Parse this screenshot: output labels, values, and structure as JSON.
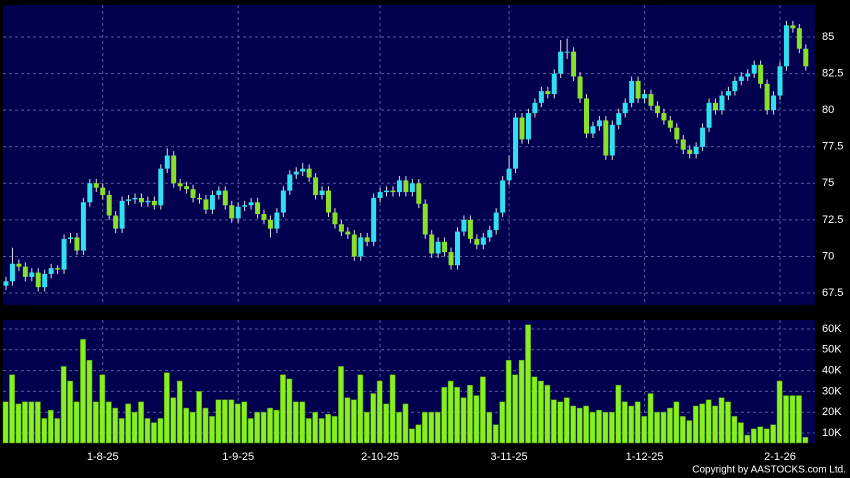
{
  "chart_data": {
    "type": "candlestick",
    "categories": [
      null,
      null,
      null,
      null,
      null,
      null,
      null,
      null,
      null,
      null,
      null,
      null,
      null,
      null,
      null,
      "1-8-25",
      null,
      null,
      null,
      null,
      null,
      null,
      null,
      null,
      null,
      null,
      null,
      null,
      null,
      null,
      null,
      null,
      null,
      null,
      null,
      null,
      "1-9-25",
      null,
      null,
      null,
      null,
      null,
      null,
      null,
      null,
      null,
      null,
      null,
      null,
      null,
      null,
      null,
      null,
      null,
      null,
      null,
      null,
      null,
      "2-10-25",
      null,
      null,
      null,
      null,
      null,
      null,
      null,
      null,
      null,
      null,
      null,
      null,
      null,
      null,
      null,
      null,
      null,
      null,
      null,
      "3-11-25",
      null,
      null,
      null,
      null,
      null,
      null,
      null,
      null,
      null,
      null,
      null,
      null,
      null,
      null,
      null,
      null,
      null,
      null,
      null,
      null,
      "1-12-25",
      null,
      null,
      null,
      null,
      null,
      null,
      null,
      null,
      null,
      null,
      null,
      null,
      null,
      null,
      null,
      null,
      null,
      null,
      null,
      null,
      "2-1-26",
      null,
      null,
      null,
      null
    ],
    "open": [
      68.0,
      68.3,
      69.5,
      69.3,
      68.6,
      68.9,
      67.9,
      68.8,
      69.2,
      69.1,
      71.2,
      71.3,
      70.4,
      73.7,
      75.0,
      74.7,
      74.2,
      72.8,
      71.9,
      73.8,
      73.9,
      74.0,
      73.7,
      73.8,
      73.5,
      76.0,
      76.9,
      75.0,
      74.8,
      74.6,
      74.0,
      73.9,
      73.2,
      74.2,
      74.5,
      73.5,
      72.6,
      73.4,
      73.5,
      73.7,
      72.9,
      72.5,
      71.9,
      73.0,
      74.5,
      75.6,
      75.8,
      76.0,
      75.4,
      74.2,
      74.5,
      73.0,
      72.2,
      71.7,
      71.5,
      70.0,
      71.3,
      71.0,
      74.0,
      74.4,
      74.5,
      74.4,
      75.2,
      74.4,
      75.0,
      73.6,
      71.5,
      70.2,
      71.0,
      70.3,
      69.4,
      71.7,
      72.5,
      71.2,
      70.8,
      71.3,
      71.8,
      73.0,
      75.2,
      76.0,
      79.5,
      78.0,
      79.8,
      80.5,
      81.3,
      81.1,
      82.5,
      84.0,
      84.0,
      82.3,
      80.8,
      78.4,
      78.9,
      79.3,
      76.9,
      79.0,
      79.8,
      80.5,
      82.0,
      80.8,
      81.1,
      80.3,
      79.8,
      79.3,
      78.8,
      78.0,
      77.3,
      77.0,
      77.5,
      78.8,
      80.5,
      80.0,
      81.0,
      81.3,
      82.0,
      82.3,
      82.5,
      83.1,
      81.8,
      80.0,
      81.0,
      83.0,
      85.8,
      85.6,
      84.2
    ],
    "high": [
      68.6,
      70.6,
      69.8,
      69.6,
      69.2,
      69.2,
      69.1,
      69.5,
      69.4,
      71.5,
      71.6,
      71.6,
      74.0,
      75.3,
      75.3,
      75.0,
      74.5,
      73.1,
      74.1,
      74.2,
      74.3,
      74.3,
      74.1,
      74.1,
      76.3,
      77.4,
      77.2,
      75.3,
      75.1,
      74.9,
      74.3,
      74.2,
      74.5,
      74.8,
      74.8,
      73.8,
      73.7,
      73.8,
      74.0,
      74.0,
      73.2,
      72.8,
      73.3,
      74.8,
      75.9,
      76.1,
      76.4,
      76.3,
      75.7,
      74.8,
      74.8,
      73.3,
      72.5,
      72.0,
      71.8,
      71.6,
      71.6,
      74.3,
      74.7,
      74.8,
      74.8,
      75.5,
      75.5,
      75.3,
      75.3,
      73.9,
      71.8,
      71.3,
      71.3,
      70.6,
      72.0,
      72.8,
      72.8,
      71.5,
      71.6,
      72.1,
      73.3,
      75.5,
      76.9,
      79.8,
      79.8,
      80.1,
      80.8,
      81.6,
      81.6,
      82.8,
      84.8,
      84.9,
      84.3,
      82.6,
      81.1,
      79.2,
      79.6,
      79.6,
      79.3,
      80.1,
      80.8,
      82.3,
      82.3,
      81.4,
      81.4,
      80.6,
      80.1,
      79.6,
      79.1,
      78.3,
      77.6,
      77.8,
      79.1,
      80.8,
      80.8,
      81.3,
      81.6,
      82.3,
      82.6,
      82.8,
      83.4,
      83.4,
      82.1,
      81.3,
      83.3,
      86.1,
      86.1,
      85.9,
      84.5
    ],
    "low": [
      67.7,
      68.0,
      69.0,
      68.3,
      68.3,
      67.6,
      67.6,
      68.5,
      68.8,
      68.8,
      70.9,
      70.1,
      70.1,
      73.4,
      74.4,
      73.9,
      72.5,
      71.6,
      71.6,
      73.5,
      73.6,
      73.4,
      73.4,
      73.2,
      73.2,
      75.7,
      74.7,
      74.5,
      74.3,
      73.7,
      73.6,
      72.9,
      72.9,
      73.9,
      73.2,
      72.3,
      72.3,
      73.1,
      73.2,
      72.6,
      72.2,
      71.3,
      71.6,
      72.7,
      74.2,
      75.3,
      75.5,
      75.1,
      73.9,
      73.9,
      72.7,
      71.9,
      71.4,
      71.2,
      69.7,
      69.7,
      70.7,
      70.7,
      73.7,
      74.1,
      74.1,
      74.1,
      74.1,
      74.1,
      73.3,
      71.2,
      69.9,
      69.9,
      70.0,
      69.1,
      69.1,
      71.4,
      70.9,
      70.5,
      70.5,
      71.0,
      71.5,
      72.7,
      74.9,
      75.7,
      77.7,
      77.7,
      79.5,
      80.2,
      80.8,
      80.8,
      82.2,
      83.5,
      82.0,
      80.5,
      78.1,
      78.1,
      78.6,
      76.6,
      76.6,
      78.7,
      79.5,
      80.2,
      80.5,
      80.5,
      80.0,
      79.5,
      79.0,
      78.5,
      77.7,
      77.0,
      76.7,
      76.7,
      77.2,
      78.5,
      79.7,
      79.7,
      80.7,
      81.0,
      81.7,
      82.0,
      82.2,
      81.5,
      79.7,
      79.7,
      80.7,
      82.7,
      85.3,
      83.9,
      82.7
    ],
    "close": [
      68.3,
      69.5,
      69.3,
      68.6,
      68.9,
      67.9,
      68.8,
      69.2,
      69.1,
      71.2,
      71.3,
      70.4,
      73.7,
      75.0,
      74.7,
      74.2,
      72.8,
      71.9,
      73.8,
      73.9,
      74.0,
      73.7,
      73.8,
      73.5,
      76.0,
      76.9,
      75.0,
      74.8,
      74.6,
      74.0,
      73.9,
      73.2,
      74.2,
      74.5,
      73.5,
      72.6,
      73.4,
      73.5,
      73.7,
      72.9,
      72.5,
      71.9,
      73.0,
      74.5,
      75.6,
      75.8,
      76.0,
      75.4,
      74.2,
      74.5,
      73.0,
      72.2,
      71.7,
      71.5,
      70.0,
      71.3,
      71.0,
      74.0,
      74.4,
      74.5,
      74.4,
      75.2,
      74.4,
      75.0,
      73.6,
      71.5,
      70.2,
      71.0,
      70.3,
      69.4,
      71.7,
      72.5,
      71.2,
      70.8,
      71.3,
      71.8,
      73.0,
      75.2,
      76.0,
      79.5,
      78.0,
      79.8,
      80.5,
      81.3,
      81.1,
      82.5,
      84.0,
      84.0,
      82.3,
      80.8,
      78.4,
      78.9,
      79.3,
      76.9,
      79.0,
      79.8,
      80.5,
      82.0,
      80.8,
      81.1,
      80.3,
      79.8,
      79.3,
      78.8,
      78.0,
      77.3,
      77.0,
      77.5,
      78.8,
      80.5,
      80.0,
      81.0,
      81.3,
      82.0,
      82.3,
      82.5,
      83.1,
      81.8,
      80.0,
      81.0,
      83.0,
      85.8,
      85.6,
      84.2,
      83.0
    ],
    "up_color": "#30e0f0",
    "down_color": "#88e028",
    "ylim": [
      66.68,
      87.19
    ],
    "yticks": [
      67.5,
      70,
      72.5,
      75,
      77.5,
      80,
      82.5,
      85
    ],
    "grid": true,
    "volume": {
      "color": "#88f020",
      "ylim": [
        5200,
        64300
      ],
      "yticks": [
        {
          "value": 10000,
          "label": "10K"
        },
        {
          "value": 20000,
          "label": "20K"
        },
        {
          "value": 30000,
          "label": "30K"
        },
        {
          "value": 40000,
          "label": "40K"
        },
        {
          "value": 50000,
          "label": "50K"
        },
        {
          "value": 60000,
          "label": "60K"
        }
      ],
      "values": [
        25000,
        38000,
        24000,
        25000,
        25000,
        25000,
        17000,
        21000,
        17000,
        42000,
        35000,
        25000,
        55000,
        45000,
        25000,
        38000,
        25000,
        22000,
        17000,
        24000,
        20000,
        25000,
        17000,
        15000,
        17000,
        39000,
        27000,
        35000,
        22000,
        20000,
        30000,
        22000,
        18000,
        26000,
        26000,
        26000,
        24000,
        25000,
        17000,
        20000,
        20000,
        22000,
        21000,
        38000,
        36000,
        25000,
        25000,
        17000,
        20000,
        17000,
        19000,
        18000,
        42000,
        27000,
        26000,
        38000,
        20000,
        29000,
        35000,
        24000,
        38000,
        20000,
        24000,
        12000,
        14000,
        20000,
        20000,
        20000,
        32000,
        35000,
        32000,
        27000,
        33000,
        28000,
        37000,
        20000,
        14000,
        25000,
        45000,
        38000,
        45000,
        62000,
        37000,
        35000,
        33000,
        26000,
        25000,
        27000,
        23000,
        22000,
        23000,
        20000,
        21000,
        20000,
        20000,
        33000,
        25000,
        23000,
        25000,
        18000,
        29000,
        20000,
        20000,
        22000,
        25000,
        18000,
        16000,
        23000,
        24000,
        26000,
        23000,
        27000,
        25000,
        18000,
        15000,
        9000,
        12000,
        13000,
        12000,
        14000,
        35000,
        28000,
        28000,
        28000,
        8000
      ]
    },
    "source": "Copyright by AASTOCKS.com Ltd."
  }
}
